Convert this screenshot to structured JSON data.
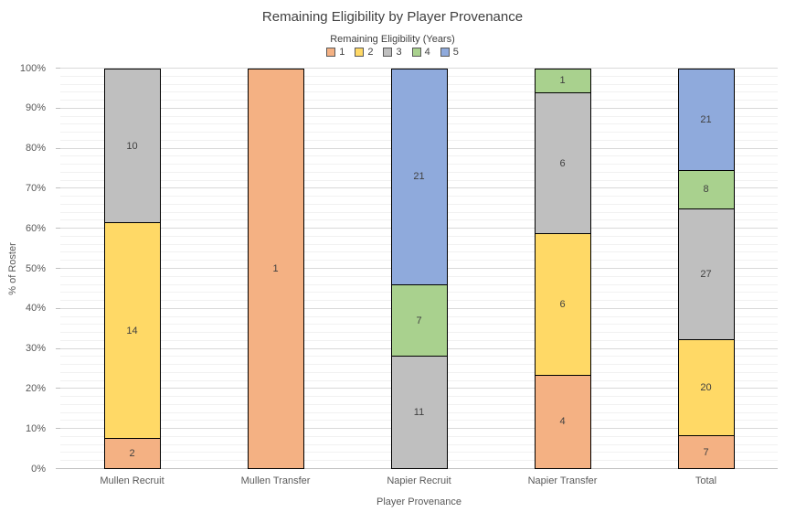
{
  "chart_data": {
    "type": "bar",
    "variant": "100%-stacked",
    "title": "Remaining Eligibility by Player Provenance",
    "legend_title": "Remaining Eligibility (Years)",
    "legend_position": "top",
    "xlabel": "Player Provenance",
    "ylabel": "% of Roster",
    "ylim": [
      0,
      100
    ],
    "y_tick_format": "percent",
    "y_major_step": 10,
    "y_minor_step": 2,
    "grid": "major-and-minor-horizontal",
    "categories": [
      "Mullen Recruit",
      "Mullen Transfer",
      "Napier Recruit",
      "Napier Transfer",
      "Total"
    ],
    "series": [
      {
        "name": "1",
        "color": "#F4B183",
        "values": [
          2,
          1,
          0,
          4,
          7
        ]
      },
      {
        "name": "2",
        "color": "#FFD966",
        "values": [
          14,
          0,
          0,
          6,
          20
        ]
      },
      {
        "name": "3",
        "color": "#BFBFBF",
        "values": [
          10,
          0,
          11,
          6,
          27
        ]
      },
      {
        "name": "4",
        "color": "#A9D18E",
        "values": [
          0,
          0,
          7,
          1,
          8
        ]
      },
      {
        "name": "5",
        "color": "#8FAADC",
        "values": [
          0,
          0,
          21,
          0,
          21
        ]
      }
    ],
    "segment_labels_visible": true,
    "segment_border_color": "#000000",
    "y_tick_labels": [
      "0%",
      "10%",
      "20%",
      "30%",
      "40%",
      "50%",
      "60%",
      "70%",
      "80%",
      "90%",
      "100%"
    ]
  }
}
